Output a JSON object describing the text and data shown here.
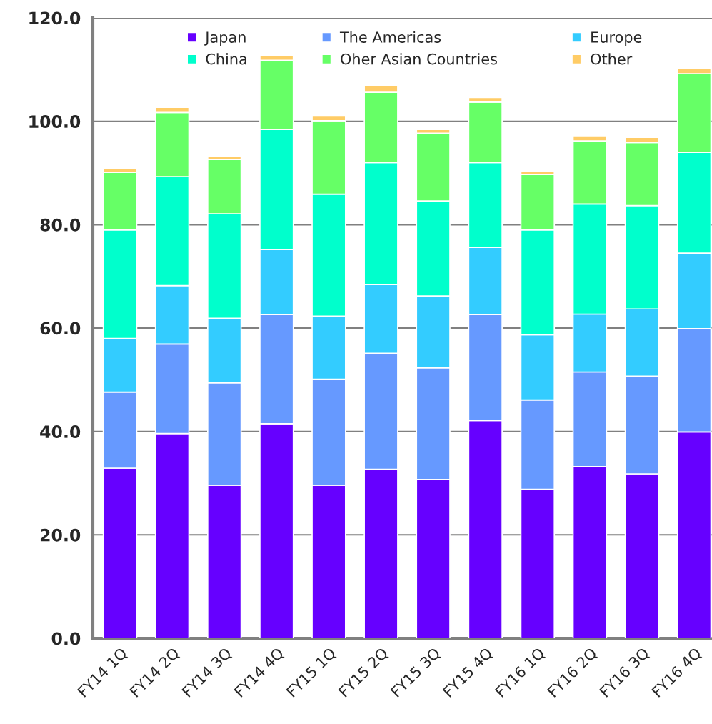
{
  "chart_data": {
    "type": "bar",
    "stacked": true,
    "categories": [
      "FY14 1Q",
      "FY14 2Q",
      "FY14 3Q",
      "FY14 4Q",
      "FY15 1Q",
      "FY15 2Q",
      "FY15 3Q",
      "FY15 4Q",
      "FY16 1Q",
      "FY16 2Q",
      "FY16 3Q",
      "FY16 4Q"
    ],
    "series": [
      {
        "name": "Japan",
        "color": "#6600ff",
        "values": [
          32.9,
          39.6,
          29.6,
          41.5,
          29.6,
          32.7,
          30.7,
          42.1,
          28.8,
          33.2,
          31.8,
          39.9
        ]
      },
      {
        "name": "The Americas",
        "color": "#6699ff",
        "values": [
          14.7,
          17.3,
          19.8,
          21.1,
          20.5,
          22.4,
          21.6,
          20.5,
          17.3,
          18.3,
          18.9,
          20.0
        ]
      },
      {
        "name": "Europe",
        "color": "#33ccff",
        "values": [
          10.4,
          11.3,
          12.5,
          12.6,
          12.2,
          13.3,
          13.9,
          13.0,
          12.6,
          11.2,
          13.0,
          14.6
        ]
      },
      {
        "name": "China",
        "color": "#00ffcc",
        "values": [
          21.0,
          21.1,
          20.2,
          23.2,
          23.6,
          23.6,
          18.4,
          16.4,
          20.3,
          21.3,
          20.0,
          19.5
        ]
      },
      {
        "name": "Oher Asian Countries",
        "color": "#66ff66",
        "values": [
          11.1,
          12.4,
          10.5,
          13.4,
          14.2,
          13.6,
          13.1,
          11.7,
          10.7,
          12.2,
          12.2,
          15.2
        ]
      },
      {
        "name": "Other",
        "color": "#ffcc66",
        "values": [
          0.7,
          1.0,
          0.7,
          0.9,
          0.9,
          1.3,
          0.7,
          0.9,
          0.7,
          1.0,
          1.0,
          1.0
        ]
      }
    ],
    "ylim": [
      0,
      120
    ],
    "yticks": [
      {
        "value": 0,
        "label": "0.0"
      },
      {
        "value": 20,
        "label": "20.0"
      },
      {
        "value": 40,
        "label": "40.0"
      },
      {
        "value": 60,
        "label": "60.0"
      },
      {
        "value": 80,
        "label": "80.0"
      },
      {
        "value": 100,
        "label": "100.0"
      },
      {
        "value": 120,
        "label": "120.0"
      }
    ],
    "grid": "y",
    "legend": "top"
  }
}
